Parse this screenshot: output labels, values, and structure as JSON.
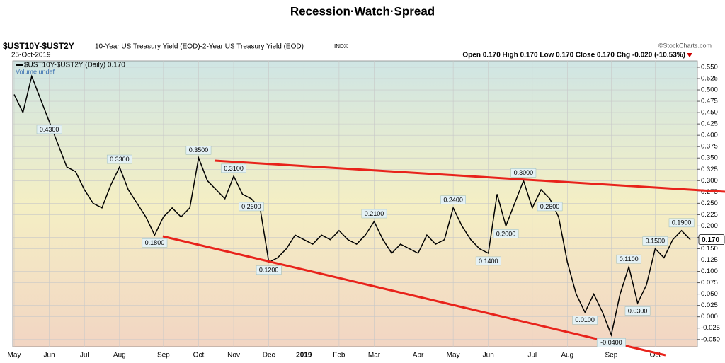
{
  "chart_data": {
    "type": "line",
    "title": "Recession·Watch·Spread",
    "symbol": "$UST10Y-$UST2Y",
    "description": "10-Year US Treasury Yield (EOD)-2-Year US Treasury Yield (EOD)",
    "exchange": "INDX",
    "date": "25-Oct-2019",
    "source": "©StockCharts.com",
    "quote": "Open 0.170  High 0.170  Low 0.170  Close 0.170  Chg -0.020 (-10.53%)",
    "legend_line": "$UST10Y-$UST2Y (Daily) 0.170",
    "legend_volume": "Volume undef",
    "last_label": "0.170",
    "categories": [
      "May",
      null,
      null,
      null,
      "Jun",
      null,
      null,
      null,
      "Jul",
      null,
      null,
      null,
      "Aug",
      null,
      null,
      null,
      null,
      "Sep",
      null,
      null,
      null,
      "Oct",
      null,
      null,
      null,
      "Nov",
      null,
      null,
      null,
      "Dec",
      null,
      null,
      null,
      "2019",
      null,
      null,
      null,
      "Feb",
      null,
      null,
      null,
      "Mar",
      null,
      null,
      null,
      null,
      "Apr",
      null,
      null,
      null,
      "May",
      null,
      null,
      null,
      "Jun",
      null,
      null,
      null,
      null,
      "Jul",
      null,
      null,
      null,
      "Aug",
      null,
      null,
      null,
      null,
      "Sep",
      null,
      null,
      null,
      null,
      "Oct",
      null,
      null,
      null,
      null
    ],
    "series": [
      {
        "name": "$UST10Y-$UST2Y",
        "color": "#000000",
        "values": [
          0.49,
          0.45,
          0.53,
          0.48,
          0.43,
          0.38,
          0.33,
          0.32,
          0.28,
          0.25,
          0.24,
          0.29,
          0.33,
          0.28,
          0.25,
          0.22,
          0.18,
          0.22,
          0.24,
          0.22,
          0.24,
          0.35,
          0.3,
          0.28,
          0.26,
          0.31,
          0.27,
          0.26,
          0.24,
          0.12,
          0.13,
          0.15,
          0.18,
          0.17,
          0.16,
          0.18,
          0.17,
          0.19,
          0.17,
          0.16,
          0.18,
          0.21,
          0.17,
          0.14,
          0.16,
          0.15,
          0.14,
          0.18,
          0.16,
          0.17,
          0.24,
          0.2,
          0.17,
          0.15,
          0.14,
          0.27,
          0.2,
          0.25,
          0.3,
          0.24,
          0.28,
          0.26,
          0.22,
          0.12,
          0.05,
          0.01,
          0.05,
          0.01,
          -0.04,
          0.05,
          0.11,
          0.03,
          0.07,
          0.15,
          0.13,
          0.17,
          0.19,
          0.17
        ],
        "value_labels": [
          null,
          null,
          null,
          null,
          "0.4300",
          null,
          null,
          null,
          null,
          null,
          null,
          null,
          "0.3300",
          null,
          null,
          null,
          "0.1800",
          null,
          null,
          null,
          null,
          "0.3500",
          null,
          null,
          null,
          "0.3100",
          null,
          "0.2600",
          null,
          "0.1200",
          null,
          null,
          null,
          null,
          null,
          null,
          null,
          null,
          null,
          null,
          null,
          "0.2100",
          null,
          null,
          null,
          null,
          null,
          null,
          null,
          null,
          "0.2400",
          null,
          null,
          null,
          "0.1400",
          null,
          "0.2000",
          null,
          "0.3000",
          null,
          null,
          "0.2600",
          null,
          null,
          null,
          "0.0100",
          null,
          null,
          "-0.0400",
          null,
          "0.1100",
          "0.0300",
          null,
          "0.1500",
          null,
          null,
          "0.1900",
          null
        ]
      }
    ],
    "ylim": [
      -0.066,
      0.564
    ],
    "yticks": [
      {
        "value": 0.55,
        "label": "0.550"
      },
      {
        "value": 0.525,
        "label": "0.525"
      },
      {
        "value": 0.5,
        "label": "0.500"
      },
      {
        "value": 0.475,
        "label": "0.475"
      },
      {
        "value": 0.45,
        "label": "0.450"
      },
      {
        "value": 0.425,
        "label": "0.425"
      },
      {
        "value": 0.4,
        "label": "0.400"
      },
      {
        "value": 0.375,
        "label": "0.375"
      },
      {
        "value": 0.35,
        "label": "0.350"
      },
      {
        "value": 0.325,
        "label": "0.325"
      },
      {
        "value": 0.3,
        "label": "0.300"
      },
      {
        "value": 0.275,
        "label": "0.275"
      },
      {
        "value": 0.25,
        "label": "0.250"
      },
      {
        "value": 0.225,
        "label": "0.225"
      },
      {
        "value": 0.2,
        "label": "0.200"
      },
      {
        "value": 0.175,
        "label": "0.175"
      },
      {
        "value": 0.15,
        "label": "0.150"
      },
      {
        "value": 0.125,
        "label": "0.125"
      },
      {
        "value": 0.1,
        "label": "0.100"
      },
      {
        "value": 0.075,
        "label": "0.075"
      },
      {
        "value": 0.05,
        "label": "0.050"
      },
      {
        "value": 0.025,
        "label": "0.025"
      },
      {
        "value": 0,
        "label": "0.000"
      },
      {
        "value": -0.025,
        "label": "-0.025"
      },
      {
        "value": -0.05,
        "label": "-0.050"
      }
    ],
    "grid": true
  }
}
